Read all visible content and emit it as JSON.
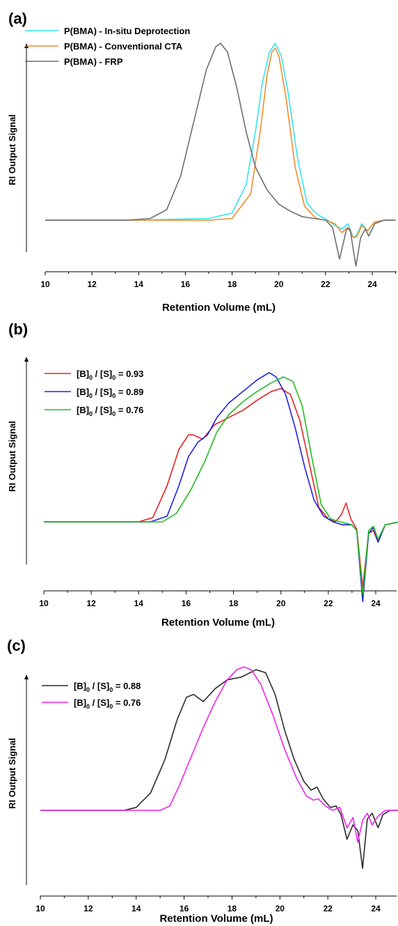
{
  "chart_data": [
    {
      "panel": "(a)",
      "type": "line",
      "xlabel": "Retention Volume (mL)",
      "ylabel": "RI Output Signal",
      "xlim": [
        10,
        25
      ],
      "x_ticks": [
        10,
        12,
        14,
        16,
        18,
        20,
        22,
        24
      ],
      "y_units": "arbitrary",
      "legend_position": "top-left",
      "series": [
        {
          "name": "P(BMA) - In-situ Deprotection",
          "color": "#33e5ee",
          "x": [
            10,
            14,
            17,
            18,
            18.6,
            19,
            19.3,
            19.6,
            19.85,
            20.1,
            20.4,
            20.8,
            21.2,
            21.5,
            21.8,
            22.1,
            22.4,
            22.7,
            22.95,
            23.2,
            23.35,
            23.55,
            23.8,
            24.1,
            24.5,
            25
          ],
          "y": [
            0,
            0,
            0.01,
            0.04,
            0.2,
            0.5,
            0.78,
            0.95,
            1.0,
            0.93,
            0.72,
            0.35,
            0.1,
            0.05,
            0.02,
            0.0,
            -0.03,
            -0.05,
            -0.02,
            -0.1,
            -0.08,
            -0.02,
            -0.06,
            -0.01,
            0,
            0
          ]
        },
        {
          "name": "P(BMA) - Conventional CTA",
          "color": "#f08c2a",
          "x": [
            10,
            14,
            17,
            18,
            18.8,
            19.2,
            19.5,
            19.7,
            19.85,
            20.0,
            20.3,
            20.7,
            21.1,
            21.6,
            22.0,
            22.4,
            22.7,
            22.95,
            23.2,
            23.35,
            23.55,
            23.8,
            24.1,
            24.5,
            25
          ],
          "y": [
            0,
            0,
            0,
            0.01,
            0.15,
            0.5,
            0.82,
            0.95,
            0.97,
            0.93,
            0.7,
            0.3,
            0.08,
            0.01,
            0.0,
            -0.02,
            -0.07,
            -0.04,
            -0.1,
            -0.09,
            -0.03,
            -0.06,
            -0.01,
            0,
            0
          ]
        },
        {
          "name": "P(BMA) - FRP",
          "color": "#6e6e6e",
          "x": [
            10,
            13.5,
            14.5,
            15.2,
            15.8,
            16.4,
            16.9,
            17.3,
            17.5,
            17.8,
            18.2,
            18.6,
            19.0,
            19.5,
            20.0,
            20.5,
            21.0,
            21.5,
            22.0,
            22.3,
            22.6,
            22.9,
            23.05,
            23.3,
            23.5,
            23.7,
            23.85,
            24.1,
            24.5,
            25
          ],
          "y": [
            0,
            0,
            0.01,
            0.06,
            0.25,
            0.58,
            0.85,
            0.98,
            1.0,
            0.95,
            0.75,
            0.5,
            0.3,
            0.17,
            0.09,
            0.05,
            0.02,
            0.01,
            0.0,
            -0.04,
            -0.22,
            -0.05,
            -0.05,
            -0.26,
            -0.1,
            -0.05,
            -0.09,
            -0.02,
            0,
            0
          ]
        }
      ]
    },
    {
      "panel": "(b)",
      "type": "line",
      "xlabel": "Retention Volume (mL)",
      "ylabel": "RI Output Signal",
      "xlim": [
        10,
        25
      ],
      "x_ticks": [
        10,
        12,
        14,
        16,
        18,
        20,
        22,
        24
      ],
      "y_units": "arbitrary",
      "legend_position": "top-left",
      "series": [
        {
          "name": "[B]0 / [S]0 = 0.93",
          "color": "#e52222",
          "x": [
            10,
            14,
            14.6,
            15.2,
            15.7,
            16.1,
            16.3,
            16.7,
            17.2,
            17.8,
            18.4,
            19.0,
            19.6,
            20.0,
            20.4,
            20.8,
            21.2,
            21.6,
            22.0,
            22.3,
            22.55,
            22.75,
            22.95,
            23.2,
            23.45,
            23.7,
            23.9,
            24.1,
            24.4,
            25
          ],
          "y": [
            0,
            0,
            0.03,
            0.25,
            0.5,
            0.6,
            0.6,
            0.57,
            0.67,
            0.72,
            0.77,
            0.84,
            0.9,
            0.92,
            0.88,
            0.7,
            0.4,
            0.1,
            0.02,
            0.0,
            0.05,
            0.13,
            0.02,
            -0.05,
            -0.45,
            -0.08,
            -0.06,
            -0.14,
            -0.02,
            0
          ]
        },
        {
          "name": "[B]0 / [S]0 = 0.89",
          "color": "#2020e0",
          "x": [
            10,
            14.5,
            15.2,
            15.7,
            16.1,
            16.5,
            16.9,
            17.3,
            17.8,
            18.4,
            19.0,
            19.5,
            19.8,
            20.2,
            20.6,
            21.0,
            21.4,
            21.8,
            22.2,
            22.6,
            23.0,
            23.2,
            23.45,
            23.7,
            23.9,
            24.1,
            24.4,
            25
          ],
          "y": [
            0,
            0,
            0.04,
            0.25,
            0.45,
            0.55,
            0.6,
            0.72,
            0.82,
            0.9,
            0.98,
            1.03,
            1.0,
            0.88,
            0.65,
            0.38,
            0.15,
            0.04,
            0.0,
            -0.02,
            -0.02,
            -0.06,
            -0.55,
            -0.08,
            -0.04,
            -0.14,
            -0.02,
            0
          ]
        },
        {
          "name": "[B]0 / [S]0 = 0.76",
          "color": "#22bb22",
          "x": [
            10,
            15,
            15.6,
            16.2,
            16.8,
            17.3,
            17.8,
            18.4,
            19.0,
            19.6,
            20.1,
            20.5,
            20.9,
            21.3,
            21.7,
            22.1,
            22.5,
            23.0,
            23.2,
            23.45,
            23.7,
            23.9,
            24.1,
            24.4,
            25
          ],
          "y": [
            0,
            0,
            0.06,
            0.22,
            0.42,
            0.62,
            0.74,
            0.83,
            0.9,
            0.96,
            1.0,
            0.97,
            0.8,
            0.45,
            0.12,
            0.02,
            0.0,
            -0.02,
            -0.06,
            -0.5,
            -0.06,
            -0.03,
            -0.12,
            -0.02,
            0
          ]
        }
      ]
    },
    {
      "panel": "(c)",
      "type": "line",
      "xlabel": "Retention Volume (mL)",
      "ylabel": "RI Output Signal",
      "xlim": [
        10,
        25
      ],
      "x_ticks": [
        10,
        12,
        14,
        16,
        18,
        20,
        22,
        24
      ],
      "y_units": "arbitrary",
      "legend_position": "top-left",
      "series": [
        {
          "name": "[B]0 / [S]0 = 0.88",
          "color": "#2a2a2a",
          "x": [
            10,
            13.5,
            14,
            14.6,
            15.2,
            15.7,
            16.1,
            16.4,
            16.8,
            17.3,
            17.8,
            18.4,
            19.0,
            19.4,
            19.8,
            20.2,
            20.6,
            21.0,
            21.3,
            21.55,
            21.8,
            22.1,
            22.35,
            22.55,
            22.8,
            23.05,
            23.25,
            23.45,
            23.65,
            23.85,
            24.1,
            24.3,
            24.6,
            25
          ],
          "y": [
            0,
            0,
            0.02,
            0.12,
            0.35,
            0.62,
            0.78,
            0.8,
            0.75,
            0.84,
            0.9,
            0.92,
            0.97,
            0.95,
            0.8,
            0.55,
            0.35,
            0.2,
            0.14,
            0.16,
            0.08,
            0.02,
            0.03,
            -0.03,
            -0.2,
            -0.1,
            -0.14,
            -0.4,
            -0.06,
            -0.02,
            -0.12,
            -0.03,
            0.0,
            0
          ]
        },
        {
          "name": "[B]0 / [S]0 = 0.76",
          "color": "#ee22ee",
          "x": [
            10,
            15,
            15.4,
            15.8,
            16.3,
            16.8,
            17.3,
            17.8,
            18.2,
            18.5,
            18.8,
            19.2,
            19.7,
            20.2,
            20.7,
            21.1,
            21.4,
            21.6,
            21.9,
            22.2,
            22.5,
            22.8,
            23.05,
            23.25,
            23.45,
            23.65,
            23.85,
            24.1,
            24.4,
            25
          ],
          "y": [
            0,
            0,
            0.03,
            0.17,
            0.37,
            0.57,
            0.75,
            0.9,
            0.97,
            0.99,
            0.97,
            0.87,
            0.66,
            0.42,
            0.22,
            0.1,
            0.07,
            0.08,
            0.03,
            0.0,
            0.02,
            -0.12,
            -0.05,
            -0.22,
            -0.07,
            -0.02,
            -0.1,
            -0.04,
            0.0,
            0
          ]
        }
      ]
    }
  ]
}
